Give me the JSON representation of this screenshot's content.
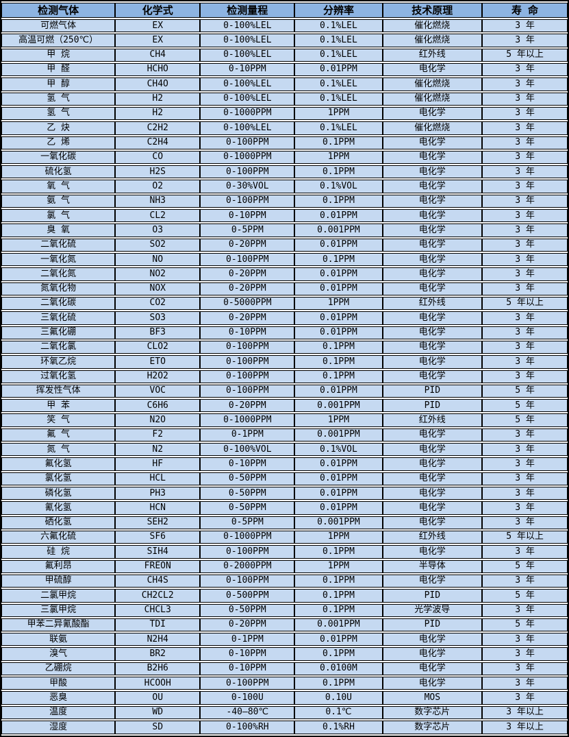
{
  "table": {
    "title": "gas-detection-sensor-specifications",
    "headers": [
      "检测气体",
      "化学式",
      "检测量程",
      "分辨率",
      "技术原理",
      "寿 命"
    ],
    "rows": [
      [
        "可燃气体",
        "EX",
        "0-100%LEL",
        "0.1%LEL",
        "催化燃烧",
        "3 年"
      ],
      [
        "高温可燃（250℃）",
        "EX",
        "0-100%LEL",
        "0.1%LEL",
        "催化燃烧",
        "3 年"
      ],
      [
        "甲 烷",
        "CH4",
        "0-100%LEL",
        "0.1%LEL",
        "红外线",
        "5 年以上"
      ],
      [
        "甲 醛",
        "HCHO",
        "0-10PPM",
        "0.01PPM",
        "电化学",
        "3 年"
      ],
      [
        "甲 醇",
        "CH4O",
        "0-100%LEL",
        "0.1%LEL",
        "催化燃烧",
        "3 年"
      ],
      [
        "氢 气",
        "H2",
        "0-100%LEL",
        "0.1%LEL",
        "催化燃烧",
        "3 年"
      ],
      [
        "氢 气",
        "H2",
        "0-1000PPM",
        "1PPM",
        "电化学",
        "3 年"
      ],
      [
        "乙 炔",
        "C2H2",
        "0-100%LEL",
        "0.1%LEL",
        "催化燃烧",
        "3 年"
      ],
      [
        "乙 烯",
        "C2H4",
        "0-100PPM",
        "0.1PPM",
        "电化学",
        "3 年"
      ],
      [
        "一氧化碳",
        "CO",
        "0-1000PPM",
        "1PPM",
        "电化学",
        "3 年"
      ],
      [
        "硫化氢",
        "H2S",
        "0-100PPM",
        "0.1PPM",
        "电化学",
        "3 年"
      ],
      [
        "氧 气",
        "O2",
        "0-30%VOL",
        "0.1%VOL",
        "电化学",
        "3 年"
      ],
      [
        "氨 气",
        "NH3",
        "0-100PPM",
        "0.1PPM",
        "电化学",
        "3 年"
      ],
      [
        "氯 气",
        "CL2",
        "0-10PPM",
        "0.01PPM",
        "电化学",
        "3 年"
      ],
      [
        "臭 氧",
        "O3",
        "0-5PPM",
        "0.001PPM",
        "电化学",
        "3 年"
      ],
      [
        "二氧化硫",
        "SO2",
        "0-20PPM",
        "0.01PPM",
        "电化学",
        "3 年"
      ],
      [
        "一氧化氮",
        "NO",
        "0-100PPM",
        "0.1PPM",
        "电化学",
        "3 年"
      ],
      [
        "二氧化氮",
        "NO2",
        "0-20PPM",
        "0.01PPM",
        "电化学",
        "3 年"
      ],
      [
        "氮氧化物",
        "NOX",
        "0-20PPM",
        "0.01PPM",
        "电化学",
        "3 年"
      ],
      [
        "二氧化碳",
        "CO2",
        "0-5000PPM",
        "1PPM",
        "红外线",
        "5 年以上"
      ],
      [
        "三氧化硫",
        "SO3",
        "0-20PPM",
        "0.01PPM",
        "电化学",
        "3 年"
      ],
      [
        "三氟化硼",
        "BF3",
        "0-10PPM",
        "0.01PPM",
        "电化学",
        "3 年"
      ],
      [
        "二氧化氯",
        "CLO2",
        "0-100PPM",
        "0.1PPM",
        "电化学",
        "3 年"
      ],
      [
        "环氧乙烷",
        "ETO",
        "0-100PPM",
        "0.1PPM",
        "电化学",
        "3 年"
      ],
      [
        "过氧化氢",
        "H2O2",
        "0-100PPM",
        "0.1PPM",
        "电化学",
        "3 年"
      ],
      [
        "挥发性气体",
        "VOC",
        "0-100PPM",
        "0.01PPM",
        "PID",
        "5 年"
      ],
      [
        "甲 苯",
        "C6H6",
        "0-20PPM",
        "0.001PPM",
        "PID",
        "5 年"
      ],
      [
        "笑 气",
        "N2O",
        "0-1000PPM",
        "1PPM",
        "红外线",
        "5 年"
      ],
      [
        "氟 气",
        "F2",
        "0-1PPM",
        "0.001PPM",
        "电化学",
        "3 年"
      ],
      [
        "氮 气",
        "N2",
        "0-100%VOL",
        "0.1%VOL",
        "电化学",
        "3 年"
      ],
      [
        "氟化氢",
        "HF",
        "0-10PPM",
        "0.01PPM",
        "电化学",
        "3 年"
      ],
      [
        "氯化氢",
        "HCL",
        "0-50PPM",
        "0.01PPM",
        "电化学",
        "3 年"
      ],
      [
        "磷化氢",
        "PH3",
        "0-50PPM",
        "0.01PPM",
        "电化学",
        "3 年"
      ],
      [
        "氰化氢",
        "HCN",
        "0-50PPM",
        "0.01PPM",
        "电化学",
        "3 年"
      ],
      [
        "硒化氢",
        "SEH2",
        "0-5PPM",
        "0.001PPM",
        "电化学",
        "3 年"
      ],
      [
        "六氟化硫",
        "SF6",
        "0-1000PPM",
        "1PPM",
        "红外线",
        "5 年以上"
      ],
      [
        "硅 烷",
        "SIH4",
        "0-100PPM",
        "0.1PPM",
        "电化学",
        "3 年"
      ],
      [
        "氟利昂",
        "FREON",
        "0-2000PPM",
        "1PPM",
        "半导体",
        "5 年"
      ],
      [
        "甲硫醇",
        "CH4S",
        "0-100PPM",
        "0.1PPM",
        "电化学",
        "3 年"
      ],
      [
        "二氯甲烷",
        "CH2CL2",
        "0-500PPM",
        "0.1PPM",
        "PID",
        "5 年"
      ],
      [
        "三氯甲烷",
        "CHCL3",
        "0-50PPM",
        "0.1PPM",
        "光学波导",
        "3 年"
      ],
      [
        "甲苯二异氰酸酯",
        "TDI",
        "0-20PPM",
        "0.001PPM",
        "PID",
        "5 年"
      ],
      [
        "联氨",
        "N2H4",
        "0-1PPM",
        "0.01PPM",
        "电化学",
        "3 年"
      ],
      [
        "溴气",
        "BR2",
        "0-10PPM",
        "0.1PPM",
        "电化学",
        "3 年"
      ],
      [
        "乙硼烷",
        "B2H6",
        "0-10PPM",
        "0.0100M",
        "电化学",
        "3 年"
      ],
      [
        "甲酸",
        "HCOOH",
        "0-100PPM",
        "0.1PPM",
        "电化学",
        "3 年"
      ],
      [
        "恶臭",
        "OU",
        "0-100U",
        "0.10U",
        "MOS",
        "3 年"
      ],
      [
        "温度",
        "WD",
        "-40—80℃",
        "0.1℃",
        "数字芯片",
        "3 年以上"
      ],
      [
        "湿度",
        "SD",
        "0-100%RH",
        "0.1%RH",
        "数字芯片",
        "3 年以上"
      ]
    ],
    "column_widths_pct": [
      20.1,
      15.0,
      16.7,
      15.5,
      17.6,
      15.1
    ]
  },
  "colors": {
    "header_bg": "#8DB4E2",
    "row_bg": "#C5D9F1",
    "border": "#000000",
    "text": "#000000"
  }
}
